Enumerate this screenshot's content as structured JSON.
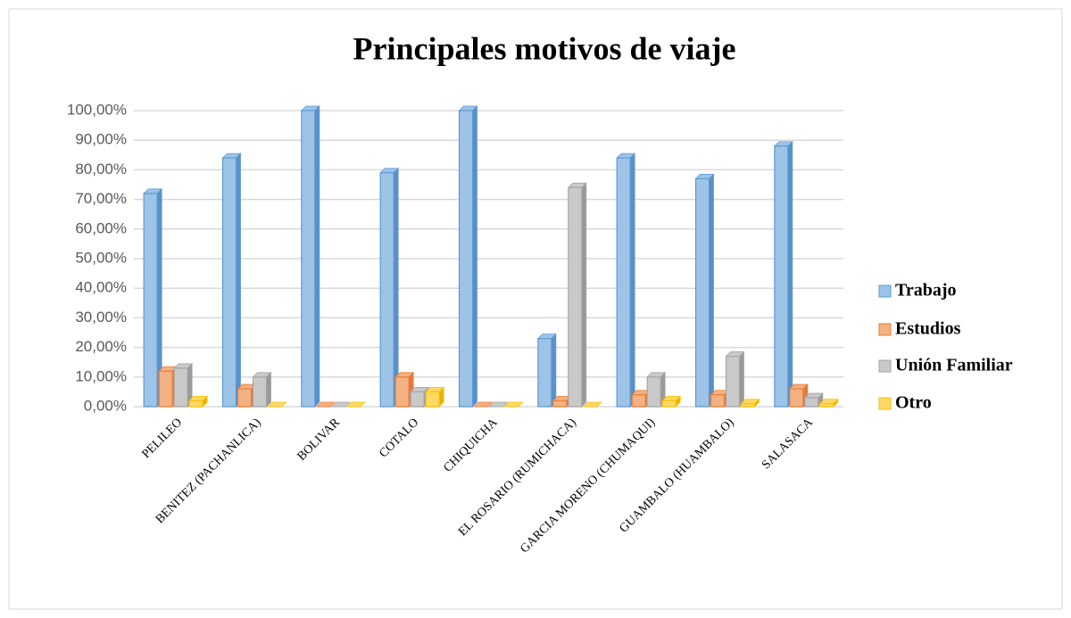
{
  "chart_data": {
    "type": "bar3d",
    "title": "Principales motivos de viaje",
    "categories": [
      "PELILEO",
      "BENITEZ (PACHANLICA)",
      "BOLIVAR",
      "COTALO",
      "CHIQUICHA",
      "EL ROSARIO (RUMICHACA)",
      "GARCIA MORENO (CHUMAQUI)",
      "GUAMBALO (HUAMBALO)",
      "SALASACA"
    ],
    "series": [
      {
        "name": "Trabajo",
        "color": "#9dc3e6",
        "values": [
          72,
          84,
          100,
          79,
          100,
          23,
          84,
          77,
          88
        ]
      },
      {
        "name": "Estudios",
        "color": "#f4b183",
        "values": [
          12,
          6,
          0,
          10,
          0,
          2,
          4,
          4,
          6
        ]
      },
      {
        "name": "Unión Familiar",
        "color": "#c9c9c9",
        "values": [
          13,
          10,
          0,
          5,
          0,
          74,
          10,
          17,
          3
        ]
      },
      {
        "name": "Otro",
        "color": "#ffd966",
        "values": [
          2,
          0,
          0,
          5,
          0,
          0,
          2,
          1,
          1
        ]
      }
    ],
    "ylim": [
      0,
      100
    ],
    "yticks": [
      {
        "value": 0,
        "label": "0,00%"
      },
      {
        "value": 10,
        "label": "10,00%"
      },
      {
        "value": 20,
        "label": "20,00%"
      },
      {
        "value": 30,
        "label": "30,00%"
      },
      {
        "value": 40,
        "label": "40,00%"
      },
      {
        "value": 50,
        "label": "50,00%"
      },
      {
        "value": 60,
        "label": "60,00%"
      },
      {
        "value": 70,
        "label": "70,00%"
      },
      {
        "value": 80,
        "label": "80,00%"
      },
      {
        "value": 90,
        "label": "90,00%"
      },
      {
        "value": 100,
        "label": "100,00%"
      }
    ],
    "grid": true,
    "legend": "right"
  }
}
